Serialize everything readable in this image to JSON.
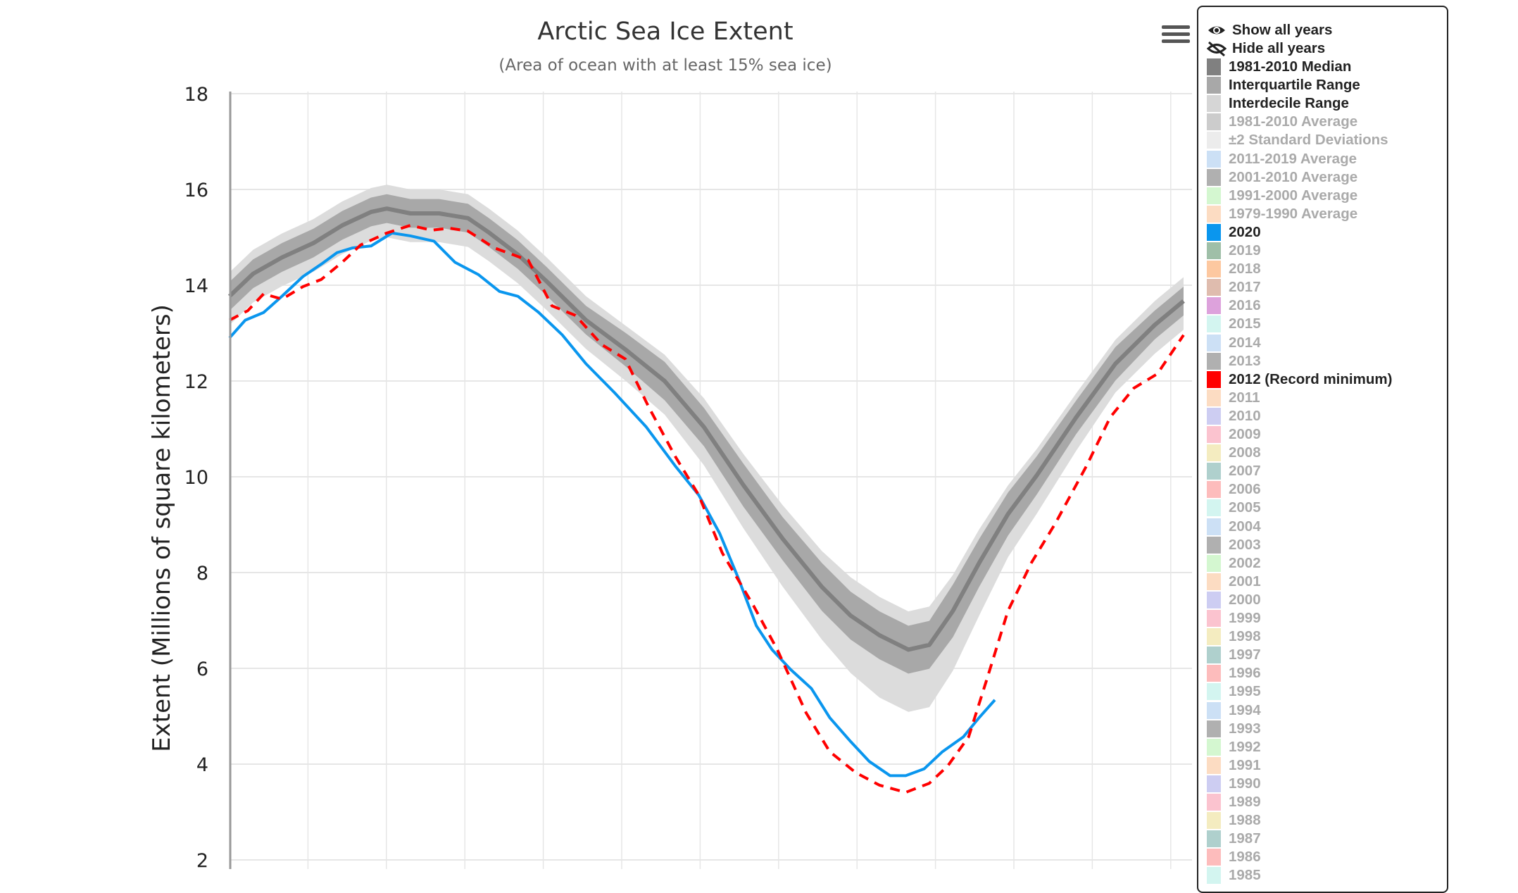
{
  "chart_data": {
    "type": "line",
    "title": "Arctic Sea Ice Extent",
    "subtitle": "(Area of ocean with at least 15% sea ice)",
    "xlabel": "",
    "ylabel": "Extent (Millions of square kilometers)",
    "xlim": [
      1,
      365
    ],
    "ylim": [
      2,
      18
    ],
    "yticks": [
      "2",
      "4",
      "6",
      "8",
      "10",
      "12",
      "14",
      "16",
      "18"
    ],
    "grid": true,
    "legend_position": "right",
    "median": {
      "name": "1981-2010 Median",
      "color": "#808080",
      "x": [
        1,
        10,
        21,
        33,
        44,
        55,
        61,
        70,
        81,
        92,
        100,
        111,
        122,
        137,
        152,
        167,
        182,
        197,
        212,
        227,
        238,
        249,
        260,
        268,
        277,
        287,
        298,
        309,
        324,
        339,
        354,
        365
      ],
      "y": [
        13.77,
        14.24,
        14.58,
        14.88,
        15.25,
        15.53,
        15.6,
        15.5,
        15.5,
        15.4,
        15.1,
        14.64,
        14.08,
        13.27,
        12.66,
        12.0,
        11.04,
        9.83,
        8.71,
        7.7,
        7.1,
        6.69,
        6.39,
        6.49,
        7.2,
        8.2,
        9.22,
        10.03,
        11.24,
        12.36,
        13.17,
        13.67
      ]
    },
    "interquartile_range": {
      "name": "Interquartile Range",
      "color": "#a8a8a8",
      "low": [
        13.47,
        13.94,
        14.28,
        14.58,
        14.95,
        15.23,
        15.3,
        15.2,
        15.2,
        15.1,
        14.8,
        14.34,
        13.78,
        12.97,
        12.31,
        11.6,
        10.64,
        9.38,
        8.26,
        7.2,
        6.6,
        6.19,
        5.89,
        5.99,
        6.65,
        7.7,
        8.77,
        9.63,
        10.89,
        12.01,
        12.87,
        13.37
      ],
      "high": [
        14.07,
        14.54,
        14.88,
        15.18,
        15.55,
        15.83,
        15.9,
        15.8,
        15.8,
        15.7,
        15.4,
        14.94,
        14.38,
        13.57,
        13.01,
        12.4,
        11.44,
        10.28,
        9.16,
        8.2,
        7.6,
        7.19,
        6.89,
        6.99,
        7.75,
        8.7,
        9.67,
        10.43,
        11.59,
        12.71,
        13.47,
        13.97
      ]
    },
    "interdecile_range": {
      "name": "Interdecile Range",
      "color": "#dcdcdc",
      "low": [
        13.17,
        13.64,
        13.98,
        14.28,
        14.65,
        14.93,
        15.0,
        14.9,
        14.9,
        14.8,
        14.5,
        14.04,
        13.48,
        12.67,
        12.01,
        11.3,
        10.24,
        8.93,
        7.71,
        6.6,
        5.9,
        5.39,
        5.09,
        5.19,
        5.95,
        7.1,
        8.32,
        9.23,
        10.54,
        11.76,
        12.57,
        13.07
      ],
      "high": [
        14.27,
        14.74,
        15.08,
        15.38,
        15.75,
        16.03,
        16.1,
        16.0,
        16.0,
        15.9,
        15.6,
        15.14,
        14.58,
        13.77,
        13.16,
        12.55,
        11.64,
        10.48,
        9.41,
        8.45,
        7.9,
        7.49,
        7.19,
        7.29,
        7.95,
        8.9,
        9.82,
        10.58,
        11.74,
        12.86,
        13.67,
        14.17
      ]
    },
    "series": [
      {
        "name": "2020",
        "color": "#0a96ee",
        "dashed": false,
        "x": [
          1,
          7,
          14,
          21,
          29,
          36,
          42,
          48,
          55,
          63,
          70,
          79,
          87,
          96,
          104,
          111,
          119,
          128,
          137,
          148,
          160,
          171,
          180,
          188,
          195,
          202,
          208,
          215,
          223,
          230,
          238,
          245,
          253,
          259,
          266,
          273,
          281,
          287,
          293
        ],
        "y": [
          12.9,
          13.27,
          13.43,
          13.77,
          14.18,
          14.44,
          14.68,
          14.78,
          14.82,
          15.09,
          15.03,
          14.92,
          14.48,
          14.22,
          13.87,
          13.77,
          13.43,
          12.96,
          12.36,
          11.75,
          11.04,
          10.23,
          9.62,
          8.82,
          7.9,
          6.89,
          6.39,
          5.98,
          5.58,
          4.97,
          4.47,
          4.06,
          3.76,
          3.76,
          3.9,
          4.26,
          4.57,
          4.97,
          5.34
        ]
      },
      {
        "name": "2012 (Record minimum)",
        "color": "#ff0000",
        "dashed": true,
        "x": [
          1,
          8,
          14,
          21,
          29,
          36,
          44,
          51,
          61,
          70,
          78,
          85,
          92,
          102,
          115,
          124,
          133,
          143,
          152,
          161,
          171,
          180,
          189,
          201,
          210,
          221,
          230,
          240,
          249,
          259,
          268,
          275,
          283,
          290,
          298,
          307,
          316,
          328,
          337,
          346,
          355,
          365
        ],
        "y": [
          13.27,
          13.47,
          13.82,
          13.71,
          13.97,
          14.12,
          14.48,
          14.84,
          15.09,
          15.25,
          15.15,
          15.19,
          15.13,
          14.78,
          14.52,
          13.57,
          13.37,
          12.76,
          12.46,
          11.45,
          10.43,
          9.62,
          8.41,
          7.3,
          6.39,
          5.07,
          4.26,
          3.82,
          3.56,
          3.41,
          3.6,
          3.96,
          4.57,
          5.78,
          7.2,
          8.21,
          9.02,
          10.23,
          11.24,
          11.85,
          12.15,
          12.96
        ]
      }
    ]
  },
  "legend": {
    "show_all": "Show all years",
    "hide_all": "Hide all years",
    "items": [
      {
        "label": "1981-2010 Median",
        "color": "#808080",
        "active": true
      },
      {
        "label": "Interquartile Range",
        "color": "#a8a8a8",
        "active": true
      },
      {
        "label": "Interdecile Range",
        "color": "#d6d6d6",
        "active": true
      },
      {
        "label": "1981-2010 Average",
        "color": "#cccccc",
        "active": false
      },
      {
        "label": "±2 Standard Deviations",
        "color": "#ececec",
        "active": false
      },
      {
        "label": "2011-2019 Average",
        "color": "#cce0f5",
        "active": false
      },
      {
        "label": "2001-2010 Average",
        "color": "#b0b0b0",
        "active": false
      },
      {
        "label": "1991-2000 Average",
        "color": "#d4f7d0",
        "active": false
      },
      {
        "label": "1979-1990 Average",
        "color": "#fcdcc2",
        "active": false
      },
      {
        "label": "2020",
        "color": "#0a96ee",
        "active": true
      },
      {
        "label": "2019",
        "color": "#9fbfa8",
        "active": false
      },
      {
        "label": "2018",
        "color": "#fdc8a0",
        "active": false
      },
      {
        "label": "2017",
        "color": "#dfbcae",
        "active": false
      },
      {
        "label": "2016",
        "color": "#dda2dc",
        "active": false
      },
      {
        "label": "2015",
        "color": "#d3f5f0",
        "active": false
      },
      {
        "label": "2014",
        "color": "#cce0f5",
        "active": false
      },
      {
        "label": "2013",
        "color": "#b0b0b0",
        "active": false
      },
      {
        "label": "2012 (Record minimum)",
        "color": "#ff0000",
        "active": true
      },
      {
        "label": "2011",
        "color": "#fcdcc2",
        "active": false
      },
      {
        "label": "2010",
        "color": "#cdcdf2",
        "active": false
      },
      {
        "label": "2009",
        "color": "#fbc3cf",
        "active": false
      },
      {
        "label": "2008",
        "color": "#f4ecc0",
        "active": false
      },
      {
        "label": "2007",
        "color": "#afd0cd",
        "active": false
      },
      {
        "label": "2006",
        "color": "#fdbcbc",
        "active": false
      },
      {
        "label": "2005",
        "color": "#d3f5f0",
        "active": false
      },
      {
        "label": "2004",
        "color": "#cce0f5",
        "active": false
      },
      {
        "label": "2003",
        "color": "#b0b0b0",
        "active": false
      },
      {
        "label": "2002",
        "color": "#d4f7d0",
        "active": false
      },
      {
        "label": "2001",
        "color": "#fcdcc2",
        "active": false
      },
      {
        "label": "2000",
        "color": "#cdcdf2",
        "active": false
      },
      {
        "label": "1999",
        "color": "#fbc3cf",
        "active": false
      },
      {
        "label": "1998",
        "color": "#f4ecc0",
        "active": false
      },
      {
        "label": "1997",
        "color": "#afd0cd",
        "active": false
      },
      {
        "label": "1996",
        "color": "#fdbcbc",
        "active": false
      },
      {
        "label": "1995",
        "color": "#d3f5f0",
        "active": false
      },
      {
        "label": "1994",
        "color": "#cce0f5",
        "active": false
      },
      {
        "label": "1993",
        "color": "#b0b0b0",
        "active": false
      },
      {
        "label": "1992",
        "color": "#d4f7d0",
        "active": false
      },
      {
        "label": "1991",
        "color": "#fcdcc2",
        "active": false
      },
      {
        "label": "1990",
        "color": "#cdcdf2",
        "active": false
      },
      {
        "label": "1989",
        "color": "#fbc3cf",
        "active": false
      },
      {
        "label": "1988",
        "color": "#f4ecc0",
        "active": false
      },
      {
        "label": "1987",
        "color": "#afd0cd",
        "active": false
      },
      {
        "label": "1986",
        "color": "#fdbcbc",
        "active": false
      },
      {
        "label": "1985",
        "color": "#d3f5f0",
        "active": false
      }
    ]
  }
}
